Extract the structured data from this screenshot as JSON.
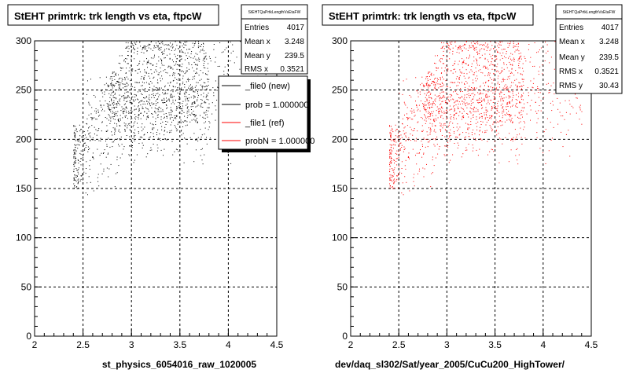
{
  "chart_data": [
    {
      "type": "scatter",
      "title": "StEHT primtrk: trk length vs eta, ftpcW",
      "xlabel": "st_physics_6054016_raw_1020005",
      "ylabel": "",
      "xlim": [
        2,
        4.5
      ],
      "ylim": [
        0,
        300
      ],
      "x_ticks": [
        "2",
        "2.5",
        "3",
        "3.5",
        "4",
        "4.5"
      ],
      "y_ticks": [
        "0",
        "50",
        "100",
        "150",
        "200",
        "250",
        "300"
      ],
      "grid": true,
      "marker_color": "#000000",
      "stats": {
        "name": "StEHTQaPrtkLengthVsEtaFW",
        "rows": [
          {
            "label": "Entries",
            "value": "4017"
          },
          {
            "label": "Mean x",
            "value": "3.248"
          },
          {
            "label": "Mean y",
            "value": "239.5"
          },
          {
            "label": "RMS x",
            "value": "0.3521"
          }
        ]
      },
      "legend": {
        "placement": "top-right",
        "entries": [
          {
            "label": "_file0 (new)",
            "color": "#000000"
          },
          {
            "label": "prob = 1.000000",
            "color": "#000000"
          },
          {
            "label": "_file1 (ref)",
            "color": "#ff0000"
          },
          {
            "label": "probN = 1.000000",
            "color": "#ff0000"
          }
        ]
      },
      "scatter_points": 1700,
      "series": [
        {
          "x_range": [
            2.4,
            4.4
          ],
          "y_center": 239.5,
          "stats": {
            "entries": 4017,
            "mean_x": 3.248,
            "mean_y": 239.5,
            "rms_x": 0.3521,
            "rms_y": 30.43
          }
        }
      ]
    },
    {
      "type": "scatter",
      "title": "StEHT primtrk: trk length vs eta, ftpcW",
      "xlabel": "dev/daq_sl302/Sat/year_2005/CuCu200_HighTower/",
      "ylabel": "",
      "xlim": [
        2,
        4.5
      ],
      "ylim": [
        0,
        300
      ],
      "x_ticks": [
        "2",
        "2.5",
        "3",
        "3.5",
        "4",
        "4.5"
      ],
      "y_ticks": [
        "0",
        "50",
        "100",
        "150",
        "200",
        "250",
        "300"
      ],
      "grid": true,
      "marker_color": "#ff0000",
      "stats": {
        "name": "StEHTQaPrtkLengthVsEtaFW",
        "rows": [
          {
            "label": "Entries",
            "value": "4017"
          },
          {
            "label": "Mean x",
            "value": "3.248"
          },
          {
            "label": "Mean y",
            "value": "239.5"
          },
          {
            "label": "RMS x",
            "value": "0.3521"
          },
          {
            "label": "RMS y",
            "value": "30.43"
          }
        ]
      },
      "scatter_points": 1700,
      "series": [
        {
          "x_range": [
            2.4,
            4.4
          ],
          "y_center": 239.5,
          "stats": {
            "entries": 4017,
            "mean_x": 3.248,
            "mean_y": 239.5,
            "rms_x": 0.3521,
            "rms_y": 30.43
          }
        }
      ]
    }
  ]
}
